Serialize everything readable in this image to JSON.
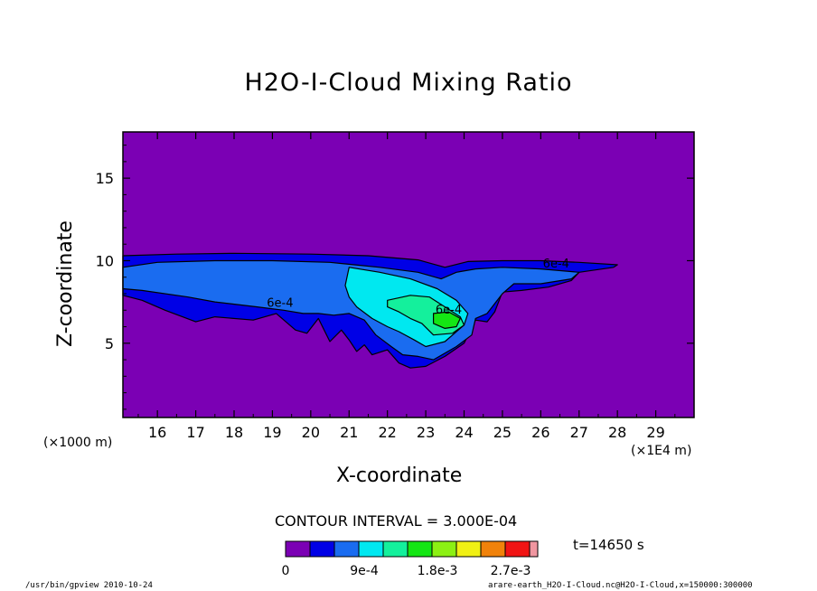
{
  "figure": {
    "footer_left": "/usr/bin/gpview  2010-10-24",
    "footer_right": "arare-earth_H2O-I-Cloud.nc@H2O-I-Cloud,x=150000:300000"
  },
  "chart_data": {
    "type": "contour",
    "title": "H2O-I-Cloud Mixing Ratio",
    "xlabel": "X-coordinate",
    "ylabel": "Z-coordinate",
    "x_unit_note": "(×1000 m)",
    "x_scale_note": "(×1E4 m)",
    "xlim": [
      15.1,
      30.0
    ],
    "ylim": [
      0.5,
      17.8
    ],
    "x_ticks": [
      16,
      17,
      18,
      19,
      20,
      21,
      22,
      23,
      24,
      25,
      26,
      27,
      28,
      29
    ],
    "y_ticks": [
      5,
      10,
      15
    ],
    "contour_interval_text": "CONTOUR INTERVAL = 3.000E-04",
    "time_text": "t=14650 s",
    "contour_labels": [
      {
        "text": "6e-4",
        "x": 26.4,
        "y": 9.6
      },
      {
        "text": "6e-4",
        "x": 19.2,
        "y": 7.2
      },
      {
        "text": "6e-4",
        "x": 23.6,
        "y": 6.8
      }
    ],
    "colorbar": {
      "colors": [
        "#7b00b4",
        "#0000e6",
        "#1a6cf0",
        "#00e8f0",
        "#14f09c",
        "#14e614",
        "#8cf014",
        "#f0f014",
        "#f0820a",
        "#f01414",
        "#f096a0"
      ],
      "tick_labels": [
        "0",
        "9e-4",
        "1.8e-3",
        "2.7e-3"
      ]
    },
    "levels": [
      {
        "level": "0-3e-4",
        "color": "#0000e6",
        "polygon": [
          [
            15.1,
            10.3
          ],
          [
            16.5,
            10.4
          ],
          [
            18,
            10.45
          ],
          [
            20,
            10.4
          ],
          [
            21.5,
            10.3
          ],
          [
            22.8,
            10.05
          ],
          [
            23.5,
            9.6
          ],
          [
            24.1,
            9.95
          ],
          [
            25,
            10.0
          ],
          [
            26,
            10.0
          ],
          [
            27,
            9.9
          ],
          [
            28,
            9.75
          ],
          [
            27.9,
            9.6
          ],
          [
            27,
            9.3
          ],
          [
            26.8,
            8.8
          ],
          [
            26.2,
            8.4
          ],
          [
            25.5,
            8.2
          ],
          [
            25,
            8.1
          ],
          [
            24.8,
            6.9
          ],
          [
            24.6,
            6.3
          ],
          [
            24.3,
            6.4
          ],
          [
            24.0,
            5.0
          ],
          [
            23.5,
            4.2
          ],
          [
            23.0,
            3.6
          ],
          [
            22.6,
            3.5
          ],
          [
            22.3,
            3.8
          ],
          [
            22.0,
            4.6
          ],
          [
            21.6,
            4.3
          ],
          [
            21.4,
            4.9
          ],
          [
            21.2,
            4.5
          ],
          [
            21.0,
            5.2
          ],
          [
            20.8,
            5.8
          ],
          [
            20.5,
            5.1
          ],
          [
            20.2,
            6.5
          ],
          [
            19.9,
            5.6
          ],
          [
            19.6,
            5.8
          ],
          [
            19.1,
            6.8
          ],
          [
            18.5,
            6.4
          ],
          [
            17.5,
            6.6
          ],
          [
            17.0,
            6.3
          ],
          [
            16.2,
            7.0
          ],
          [
            15.6,
            7.6
          ],
          [
            15.1,
            7.9
          ]
        ]
      },
      {
        "level": "3e-4-6e-4",
        "color": "#1a6cf0",
        "polygon": [
          [
            15.1,
            9.6
          ],
          [
            16,
            9.9
          ],
          [
            17.5,
            10.0
          ],
          [
            19,
            10.0
          ],
          [
            20.5,
            9.9
          ],
          [
            21.8,
            9.6
          ],
          [
            22.8,
            9.3
          ],
          [
            23.4,
            8.9
          ],
          [
            23.8,
            9.3
          ],
          [
            24.3,
            9.5
          ],
          [
            25,
            9.6
          ],
          [
            26,
            9.5
          ],
          [
            27,
            9.3
          ],
          [
            26.8,
            8.9
          ],
          [
            26,
            8.6
          ],
          [
            25.3,
            8.6
          ],
          [
            25,
            8.0
          ],
          [
            24.6,
            6.8
          ],
          [
            24.3,
            6.5
          ],
          [
            24.2,
            5.5
          ],
          [
            23.8,
            4.8
          ],
          [
            23.2,
            4.0
          ],
          [
            22.8,
            4.2
          ],
          [
            22.4,
            4.3
          ],
          [
            22.1,
            4.8
          ],
          [
            21.7,
            5.5
          ],
          [
            21.4,
            6.4
          ],
          [
            21.0,
            6.8
          ],
          [
            20.6,
            6.7
          ],
          [
            20.2,
            6.8
          ],
          [
            19.8,
            6.8
          ],
          [
            19.3,
            7.0
          ],
          [
            18.6,
            7.2
          ],
          [
            17.5,
            7.5
          ],
          [
            16.8,
            7.8
          ],
          [
            15.6,
            8.2
          ],
          [
            15.1,
            8.3
          ]
        ]
      },
      {
        "level": "6e-4-9e-4",
        "color": "#00e8f0",
        "polygon": [
          [
            21.0,
            9.6
          ],
          [
            21.8,
            9.3
          ],
          [
            22.6,
            8.9
          ],
          [
            23.3,
            8.3
          ],
          [
            23.8,
            7.6
          ],
          [
            24.1,
            6.8
          ],
          [
            24.0,
            6.1
          ],
          [
            23.5,
            5.1
          ],
          [
            23.0,
            4.8
          ],
          [
            22.7,
            5.2
          ],
          [
            22.3,
            5.7
          ],
          [
            22.0,
            6.0
          ],
          [
            21.6,
            6.5
          ],
          [
            21.2,
            7.2
          ],
          [
            21.0,
            7.8
          ],
          [
            20.9,
            8.5
          ]
        ]
      },
      {
        "level": "9e-4-1.2e-3",
        "color": "#14f09c",
        "polygon": [
          [
            22.0,
            7.6
          ],
          [
            22.6,
            7.9
          ],
          [
            23.1,
            7.8
          ],
          [
            23.5,
            7.2
          ],
          [
            23.9,
            6.6
          ],
          [
            24.0,
            6.1
          ],
          [
            23.7,
            5.6
          ],
          [
            23.2,
            5.5
          ],
          [
            22.9,
            6.2
          ],
          [
            22.6,
            6.5
          ],
          [
            22.3,
            6.9
          ],
          [
            22.0,
            7.2
          ]
        ]
      },
      {
        "level": "1.2e-3-1.5e-3",
        "color": "#14e614",
        "polygon": [
          [
            23.2,
            6.8
          ],
          [
            23.6,
            6.9
          ],
          [
            23.9,
            6.5
          ],
          [
            23.8,
            6.0
          ],
          [
            23.5,
            5.9
          ],
          [
            23.2,
            6.2
          ]
        ]
      }
    ]
  }
}
